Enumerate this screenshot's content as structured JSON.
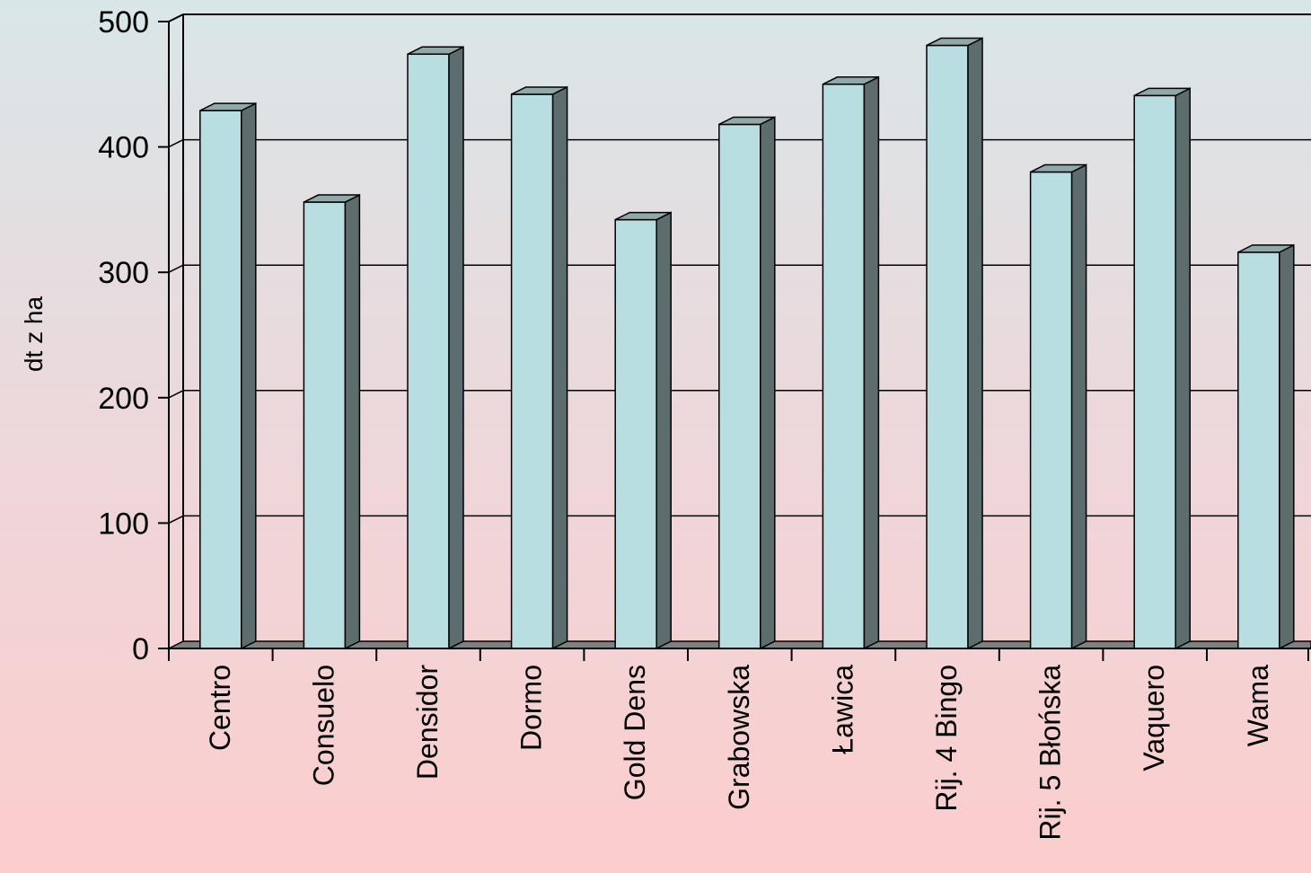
{
  "chart_data": {
    "type": "bar",
    "style": "3d-column",
    "categories": [
      "Centro",
      "Consuelo",
      "Densidor",
      "Dormo",
      "Gold Dens",
      "Grabowska",
      "Ławica",
      "Rij. 4 Bingo",
      "Rij. 5 Błońska",
      "Vaquero",
      "Wama"
    ],
    "values": [
      429,
      356,
      474,
      442,
      342,
      418,
      450,
      481,
      380,
      441,
      316
    ],
    "ylabel": "dt z ha",
    "ylim": [
      0,
      500
    ],
    "yticks": [
      "0",
      "100",
      "200",
      "300",
      "400",
      "500"
    ],
    "grid": true,
    "legend": "none",
    "colors": {
      "bar_front": "#b9dee1",
      "bar_side": "#5d6c6c",
      "bar_top": "#8fa8a8",
      "floor": "#808080",
      "axis": "#000000"
    }
  }
}
